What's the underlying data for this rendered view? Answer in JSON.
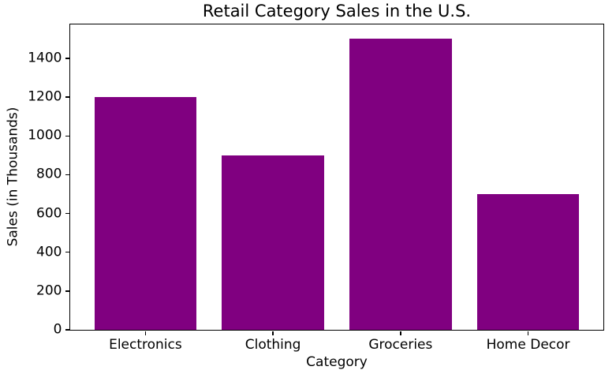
{
  "chart_data": {
    "type": "bar",
    "title": "Retail Category Sales in the U.S.",
    "xlabel": "Category",
    "ylabel": "Sales (in Thousands)",
    "categories": [
      "Electronics",
      "Clothing",
      "Groceries",
      "Home Decor"
    ],
    "values": [
      1200,
      900,
      1500,
      700
    ],
    "yticks": [
      0,
      200,
      400,
      600,
      800,
      1000,
      1200,
      1400
    ],
    "ylim": [
      0,
      1575
    ],
    "bar_color": "#800080",
    "spine_color": "#000000",
    "text_color": "#000000",
    "background_color": "#ffffff",
    "grid": false,
    "legend": null
  }
}
